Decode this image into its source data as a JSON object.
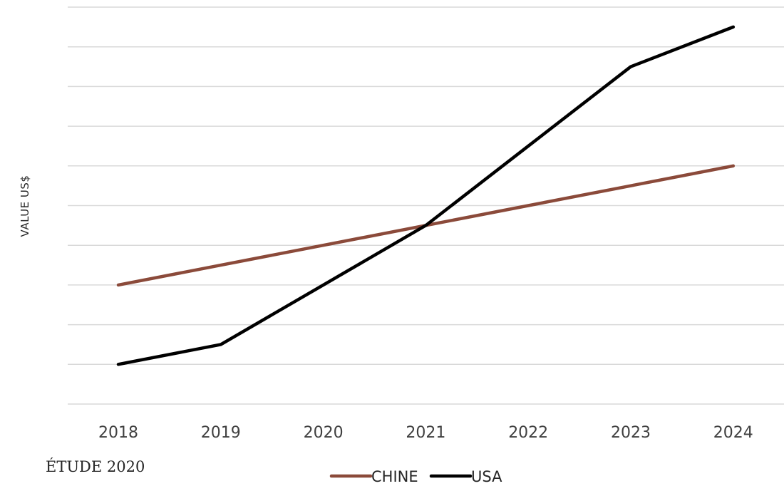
{
  "chart_data": {
    "type": "line",
    "title": "",
    "xlabel": "",
    "ylabel": "VALUE US$",
    "note": "ÉTUDE 2020",
    "categories": [
      "2018",
      "2019",
      "2020",
      "2021",
      "2022",
      "2023",
      "2024"
    ],
    "series": [
      {
        "name": "CHINE",
        "color": "#8b4a3a",
        "values": [
          3,
          3.5,
          4,
          4.5,
          5,
          5.5,
          6
        ]
      },
      {
        "name": "USA",
        "color": "#000000",
        "values": [
          1,
          1.5,
          3,
          4.5,
          6.5,
          8.5,
          9.5
        ]
      }
    ],
    "ylim": [
      0,
      10
    ],
    "ytick_step": 1,
    "y_tick_labels_shown": false,
    "grid": true,
    "legend_position": "bottom-center"
  }
}
